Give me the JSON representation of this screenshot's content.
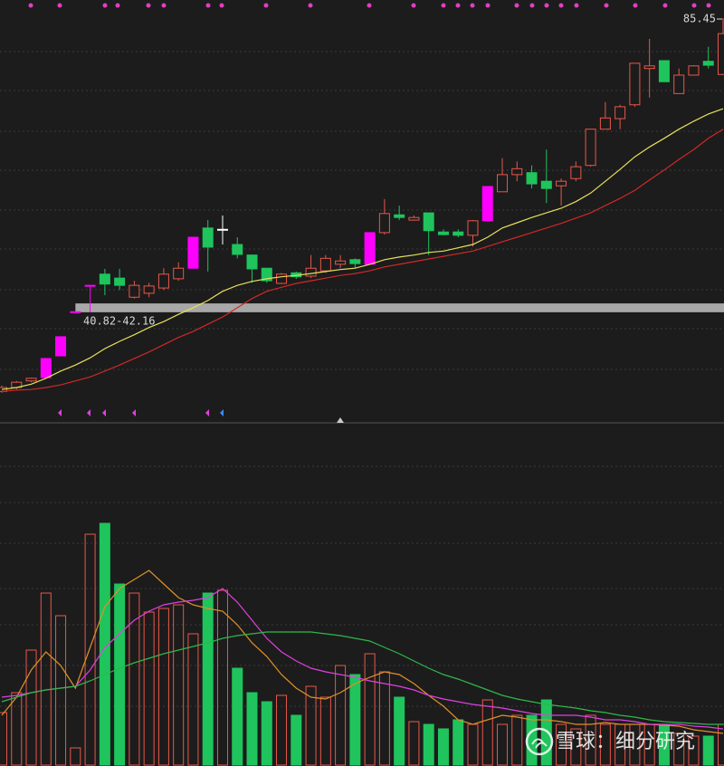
{
  "chart_data": {
    "type": "candlestick",
    "ylim": [
      25,
      88.2
    ],
    "up_color": "#e8574a",
    "down_color": "#1fc45c",
    "open": [
      28.8,
      29.4,
      30.4,
      30.9,
      34.2,
      40.8,
      44.9,
      46.6,
      46.0,
      43.1,
      43.7,
      44.5,
      45.9,
      47.5,
      53.6,
      53.4,
      51.1,
      49.5,
      47.5,
      45.2,
      46.8,
      46.3,
      47.1,
      48.1,
      48.8,
      48.1,
      52.9,
      55.6,
      54.8,
      55.9,
      53.0,
      53.0,
      52.5,
      54.7,
      59.1,
      61.7,
      62.0,
      60.7,
      60.0,
      61.1,
      63.1,
      68.6,
      70.2,
      72.3,
      77.8,
      79.0,
      74.0,
      76.8,
      78.9,
      76.9
    ],
    "high": [
      29.7,
      30.4,
      30.9,
      33.8,
      37.1,
      40.9,
      44.9,
      47.4,
      47.4,
      45.6,
      45.3,
      47.5,
      48.4,
      52.2,
      54.8,
      55.5,
      52.2,
      49.5,
      47.5,
      46.8,
      47.0,
      49.5,
      49.5,
      49.5,
      49.0,
      52.9,
      58.0,
      57.0,
      55.5,
      55.9,
      53.4,
      53.4,
      54.8,
      59.9,
      64.2,
      63.7,
      63.1,
      65.5,
      61.1,
      63.7,
      68.6,
      72.7,
      72.3,
      78.6,
      82.3,
      79.0,
      77.8,
      78.3,
      81.1,
      85.45
    ],
    "low": [
      28.6,
      29.1,
      30.2,
      30.9,
      34.2,
      40.8,
      40.8,
      43.4,
      44.2,
      42.9,
      43.1,
      44.2,
      45.6,
      47.5,
      47.0,
      51.1,
      49.0,
      45.3,
      45.3,
      45.1,
      45.9,
      46.0,
      46.8,
      47.5,
      47.5,
      48.1,
      52.6,
      54.8,
      54.7,
      49.5,
      52.5,
      52.2,
      50.8,
      54.7,
      59.1,
      60.7,
      59.6,
      57.4,
      57.0,
      60.7,
      62.9,
      68.6,
      68.6,
      72.0,
      73.4,
      75.8,
      74.0,
      76.8,
      77.8,
      76.8
    ],
    "close": [
      29.4,
      30.2,
      30.8,
      33.8,
      37.1,
      40.9,
      44.9,
      45.1,
      44.9,
      44.9,
      44.8,
      46.6,
      47.5,
      52.2,
      50.7,
      53.4,
      49.6,
      47.4,
      45.6,
      46.6,
      46.2,
      47.5,
      49.0,
      48.6,
      48.2,
      52.9,
      55.8,
      55.2,
      55.2,
      53.2,
      52.6,
      52.5,
      54.7,
      59.9,
      61.7,
      62.6,
      60.3,
      59.6,
      60.7,
      62.9,
      68.6,
      70.3,
      72.0,
      78.6,
      78.2,
      75.8,
      76.8,
      78.2,
      78.3,
      83.1
    ],
    "colors": [
      "#e8574a",
      "#e8574a",
      "#e8574a",
      "#ff00ff",
      "#ff00ff",
      "#ff00ff",
      "#ff00ff",
      "#1fc45c",
      "#1fc45c",
      "#e8574a",
      "#e8574a",
      "#e8574a",
      "#e8574a",
      "#ff00ff",
      "#1fc45c",
      "#ffffff",
      "#1fc45c",
      "#1fc45c",
      "#1fc45c",
      "#e8574a",
      "#1fc45c",
      "#e8574a",
      "#e8574a",
      "#e8574a",
      "#1fc45c",
      "#ff00ff",
      "#e8574a",
      "#1fc45c",
      "#e8574a",
      "#1fc45c",
      "#1fc45c",
      "#1fc45c",
      "#e8574a",
      "#ff00ff",
      "#e8574a",
      "#e8574a",
      "#1fc45c",
      "#1fc45c",
      "#e8574a",
      "#e8574a",
      "#e8574a",
      "#e8574a",
      "#e8574a",
      "#e8574a",
      "#e8574a",
      "#1fc45c",
      "#e8574a",
      "#e8574a",
      "#1fc45c",
      "#e8574a"
    ],
    "price_lines": [
      {
        "color": "#e8e05a",
        "values": [
          29.1,
          29.4,
          29.9,
          30.8,
          31.9,
          32.8,
          33.9,
          35.3,
          36.4,
          37.4,
          38.5,
          39.4,
          40.5,
          41.5,
          42.6,
          44.0,
          44.9,
          45.5,
          45.9,
          46.2,
          46.4,
          46.7,
          47.0,
          47.3,
          47.5,
          48.1,
          48.8,
          49.2,
          49.5,
          49.9,
          50.1,
          50.6,
          51.1,
          52.2,
          53.6,
          54.4,
          55.2,
          55.9,
          56.6,
          57.6,
          58.9,
          60.7,
          62.5,
          64.4,
          65.9,
          67.2,
          68.6,
          69.8,
          70.9,
          71.7
        ]
      },
      {
        "color": "#d02828",
        "values": [
          28.8,
          29.0,
          29.1,
          29.4,
          29.8,
          30.4,
          31.0,
          31.9,
          32.8,
          33.8,
          34.8,
          35.9,
          37.0,
          37.9,
          39.0,
          40.1,
          41.5,
          42.9,
          44.0,
          44.6,
          45.2,
          45.6,
          46.0,
          46.4,
          46.7,
          47.1,
          47.7,
          48.1,
          48.5,
          48.9,
          49.3,
          49.7,
          50.1,
          50.8,
          51.5,
          52.2,
          52.9,
          53.6,
          54.3,
          55.1,
          55.9,
          57.0,
          58.1,
          59.3,
          60.9,
          62.4,
          64.0,
          65.5,
          67.2,
          68.6
        ]
      }
    ],
    "gap_band": {
      "low": 40.82,
      "high": 42.16,
      "label": "40.82-42.16"
    },
    "volume": {
      "ylim": [
        0,
        370
      ],
      "values": [
        58,
        80,
        127,
        190,
        165,
        19,
        255,
        267,
        200,
        190,
        169,
        173,
        177,
        145,
        190,
        193,
        107,
        80,
        70,
        77,
        55,
        87,
        75,
        110,
        100,
        123,
        103,
        75,
        48,
        45,
        40,
        50,
        45,
        72,
        45,
        55,
        55,
        72,
        45,
        40,
        55,
        45,
        45,
        45,
        45,
        45,
        35,
        32,
        32,
        45
      ],
      "lines": [
        {
          "color": "#e0902a",
          "values": [
            55,
            75,
            105,
            125,
            110,
            85,
            130,
            175,
            195,
            205,
            215,
            200,
            185,
            177,
            173,
            170,
            155,
            135,
            120,
            100,
            85,
            75,
            73,
            80,
            90,
            97,
            103,
            100,
            90,
            77,
            65,
            50,
            45,
            50,
            55,
            53,
            50,
            50,
            48,
            45,
            45,
            47,
            45,
            45,
            45,
            44,
            43,
            39,
            37,
            35
          ]
        },
        {
          "color": "#e040e0",
          "values": [
            75,
            77,
            80,
            83,
            85,
            87,
            105,
            130,
            145,
            160,
            170,
            177,
            180,
            182,
            185,
            195,
            180,
            160,
            140,
            125,
            115,
            107,
            103,
            100,
            97,
            93,
            90,
            87,
            83,
            77,
            73,
            70,
            67,
            65,
            63,
            60,
            57,
            55,
            55,
            55,
            53,
            50,
            50,
            48,
            45,
            45,
            45,
            43,
            42,
            40
          ]
        },
        {
          "color": "#2fb84a",
          "values": [
            70,
            75,
            80,
            83,
            85,
            87,
            93,
            100,
            107,
            113,
            118,
            123,
            127,
            131,
            135,
            140,
            143,
            145,
            147,
            147,
            147,
            147,
            145,
            143,
            140,
            137,
            130,
            123,
            115,
            107,
            100,
            95,
            89,
            83,
            77,
            73,
            70,
            67,
            65,
            63,
            60,
            58,
            55,
            53,
            50,
            48,
            47,
            46,
            45,
            45
          ]
        }
      ]
    },
    "watermark": "雪球：细分研究"
  }
}
